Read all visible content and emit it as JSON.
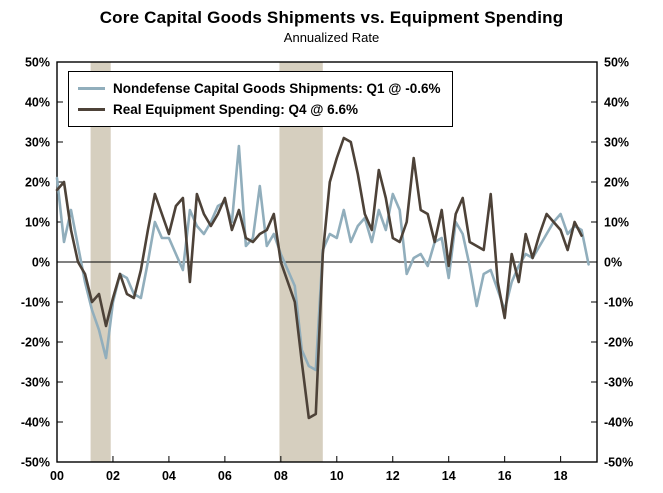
{
  "chart_data": {
    "type": "line",
    "title": "Core Capital Goods Shipments vs. Equipment Spending",
    "subtitle": "Annualized Rate",
    "grid": false,
    "legend_position": "top-left",
    "band_color": "#d6cfbf",
    "x_axis": {
      "min": 2000,
      "max": 2019.3,
      "tick_years": [
        2000,
        2002,
        2004,
        2006,
        2008,
        2010,
        2012,
        2014,
        2016,
        2018
      ],
      "tick_labels": [
        "00",
        "02",
        "04",
        "06",
        "08",
        "10",
        "12",
        "14",
        "16",
        "18"
      ]
    },
    "y_axis": {
      "min": -50,
      "max": 50,
      "tick_step": 10,
      "tick_labels": [
        "-50%",
        "-40%",
        "-30%",
        "-20%",
        "-10%",
        "0%",
        "10%",
        "20%",
        "30%",
        "40%",
        "50%"
      ]
    },
    "recession_bands": [
      {
        "start": 2001.2,
        "end": 2001.92
      },
      {
        "start": 2007.95,
        "end": 2009.5
      }
    ],
    "series": [
      {
        "id": "shipments",
        "name": "Nondefense Capital Goods Shipments",
        "label": "Nondefense Capital Goods Shipments: Q1 @ -0.6%",
        "color": "#91aebc",
        "start_year": 2000,
        "values": [
          21,
          5,
          13,
          4,
          -5,
          -12,
          -17,
          -24,
          -10,
          -3,
          -4,
          -8,
          -9,
          0,
          10,
          6,
          6,
          2,
          -2,
          13,
          9,
          7,
          10,
          14,
          15,
          10,
          29,
          4,
          6,
          19,
          4,
          7,
          2,
          -2,
          -6,
          -22,
          -26,
          -27,
          3,
          7,
          6,
          13,
          5,
          9,
          11,
          5,
          13,
          8,
          17,
          13,
          -3,
          1,
          2,
          -1,
          5,
          6,
          -4,
          10,
          7,
          -1,
          -11,
          -3,
          -2,
          -7,
          -12,
          -5,
          -1,
          2,
          1,
          4,
          7,
          10,
          12,
          7,
          9,
          8,
          -0.6
        ]
      },
      {
        "id": "equipment",
        "name": "Real Equipment Spending",
        "label": "Real Equipment Spending: Q4 @ 6.6%",
        "color": "#4d4238",
        "start_year": 2000,
        "values": [
          18,
          20,
          8,
          0,
          -3,
          -10,
          -8,
          -16,
          -9,
          -3,
          -8,
          -9,
          -2,
          8,
          17,
          12,
          7,
          14,
          16,
          -5,
          17,
          12,
          9,
          12,
          16,
          8,
          13,
          6,
          5,
          7,
          8,
          12,
          0,
          -5,
          -10,
          -25,
          -39,
          -38,
          2,
          20,
          26,
          31,
          30,
          22,
          12,
          8,
          23,
          16,
          6,
          5,
          10,
          26,
          13,
          12,
          5,
          13,
          -1,
          12,
          16,
          5,
          4,
          3,
          17,
          -5,
          -14,
          2,
          -5,
          7,
          1,
          7,
          12,
          10,
          8,
          3,
          10,
          6.6
        ]
      }
    ]
  }
}
